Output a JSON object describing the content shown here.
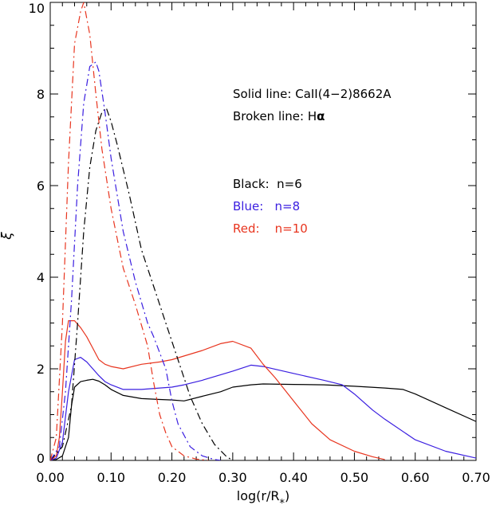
{
  "chart_data": {
    "type": "line",
    "xlabel": "log(r/R*)",
    "xlabel_main": "log(r/R",
    "xlabel_sub": "*",
    "xlabel_close": ")",
    "ylabel": "ξ",
    "xlim": [
      0.0,
      0.7
    ],
    "ylim": [
      0,
      10
    ],
    "x_ticks": [
      0.0,
      0.1,
      0.2,
      0.3,
      0.4,
      0.5,
      0.6,
      0.7
    ],
    "x_tick_labels": [
      "0.00",
      "0.10",
      "0.20",
      "0.30",
      "0.40",
      "0.50",
      "0.60",
      "0.70"
    ],
    "y_ticks": [
      0,
      2,
      4,
      6,
      8,
      10
    ],
    "y_tick_labels": [
      "0",
      "2",
      "4",
      "6",
      "8",
      "10"
    ],
    "grid": false,
    "colors": {
      "black": "#000000",
      "blue": "#3a1ee0",
      "red": "#e8351f"
    },
    "annotations": {
      "solid_line": "Solid line: CaII(4−2)8662A",
      "broken_line_prefix": "Broken line: H",
      "broken_line_symbol": "α",
      "black_label": "Black:  n=6",
      "blue_label": "Blue:   n=8",
      "red_label": "Red:    n=10"
    },
    "series": [
      {
        "color": "#000000",
        "style": "solid",
        "x": [
          0.0,
          0.01,
          0.02,
          0.03,
          0.035,
          0.04,
          0.05,
          0.06,
          0.07,
          0.08,
          0.09,
          0.1,
          0.12,
          0.15,
          0.18,
          0.2,
          0.22,
          0.25,
          0.28,
          0.3,
          0.33,
          0.35,
          0.4,
          0.45,
          0.5,
          0.55,
          0.58,
          0.6,
          0.65,
          0.7
        ],
        "y": [
          0.0,
          0.02,
          0.1,
          0.5,
          1.2,
          1.6,
          1.72,
          1.75,
          1.77,
          1.73,
          1.65,
          1.55,
          1.42,
          1.35,
          1.33,
          1.32,
          1.3,
          1.4,
          1.5,
          1.6,
          1.65,
          1.67,
          1.66,
          1.65,
          1.62,
          1.58,
          1.55,
          1.45,
          1.15,
          0.85
        ]
      },
      {
        "color": "#3a1ee0",
        "style": "solid",
        "x": [
          0.0,
          0.01,
          0.02,
          0.03,
          0.04,
          0.05,
          0.06,
          0.07,
          0.08,
          0.09,
          0.1,
          0.12,
          0.15,
          0.18,
          0.2,
          0.22,
          0.25,
          0.3,
          0.33,
          0.35,
          0.4,
          0.45,
          0.48,
          0.5,
          0.53,
          0.55,
          0.6,
          0.65,
          0.7
        ],
        "y": [
          0.0,
          0.05,
          0.4,
          1.5,
          2.2,
          2.25,
          2.15,
          2.0,
          1.85,
          1.72,
          1.65,
          1.55,
          1.55,
          1.58,
          1.6,
          1.65,
          1.75,
          1.95,
          2.08,
          2.05,
          1.9,
          1.75,
          1.65,
          1.45,
          1.1,
          0.9,
          0.45,
          0.2,
          0.05
        ]
      },
      {
        "color": "#e8351f",
        "style": "solid",
        "x": [
          0.0,
          0.01,
          0.015,
          0.02,
          0.025,
          0.03,
          0.04,
          0.05,
          0.06,
          0.07,
          0.08,
          0.09,
          0.1,
          0.12,
          0.15,
          0.18,
          0.2,
          0.25,
          0.28,
          0.3,
          0.33,
          0.35,
          0.37,
          0.4,
          0.43,
          0.46,
          0.5,
          0.53,
          0.55
        ],
        "y": [
          0.0,
          0.1,
          0.5,
          1.5,
          2.6,
          3.05,
          3.05,
          2.9,
          2.7,
          2.45,
          2.2,
          2.1,
          2.05,
          2.0,
          2.1,
          2.15,
          2.2,
          2.4,
          2.55,
          2.6,
          2.45,
          2.1,
          1.8,
          1.3,
          0.8,
          0.45,
          0.2,
          0.08,
          0.02
        ]
      },
      {
        "color": "#000000",
        "style": "dashdot",
        "x": [
          0.0,
          0.02,
          0.035,
          0.045,
          0.055,
          0.065,
          0.075,
          0.085,
          0.092,
          0.1,
          0.11,
          0.13,
          0.15,
          0.17,
          0.19,
          0.21,
          0.23,
          0.25,
          0.27,
          0.29,
          0.3
        ],
        "y": [
          0.0,
          0.3,
          1.2,
          3.0,
          5.0,
          6.4,
          7.2,
          7.6,
          7.7,
          7.4,
          6.9,
          5.8,
          4.6,
          3.8,
          3.0,
          2.2,
          1.4,
          0.8,
          0.35,
          0.08,
          0.0
        ]
      },
      {
        "color": "#3a1ee0",
        "style": "dashdot",
        "x": [
          0.0,
          0.015,
          0.025,
          0.035,
          0.045,
          0.055,
          0.065,
          0.075,
          0.08,
          0.09,
          0.1,
          0.12,
          0.14,
          0.16,
          0.17,
          0.19,
          0.2,
          0.21,
          0.23,
          0.25,
          0.27,
          0.28
        ],
        "y": [
          0.0,
          0.3,
          1.5,
          3.5,
          6.0,
          7.8,
          8.6,
          8.7,
          8.5,
          7.6,
          6.6,
          5.0,
          3.9,
          3.0,
          2.7,
          2.0,
          1.3,
          0.8,
          0.3,
          0.1,
          0.02,
          0.0
        ]
      },
      {
        "color": "#e8351f",
        "style": "dashdot",
        "x": [
          0.0,
          0.01,
          0.02,
          0.03,
          0.04,
          0.05,
          0.055,
          0.065,
          0.075,
          0.085,
          0.1,
          0.12,
          0.14,
          0.16,
          0.17,
          0.18,
          0.19,
          0.2,
          0.22,
          0.24,
          0.26
        ],
        "y": [
          0.0,
          0.5,
          3.0,
          6.5,
          9.1,
          9.8,
          10.0,
          9.3,
          8.0,
          6.8,
          5.5,
          4.2,
          3.4,
          2.5,
          1.7,
          1.0,
          0.6,
          0.3,
          0.1,
          0.03,
          0.0
        ]
      }
    ]
  }
}
